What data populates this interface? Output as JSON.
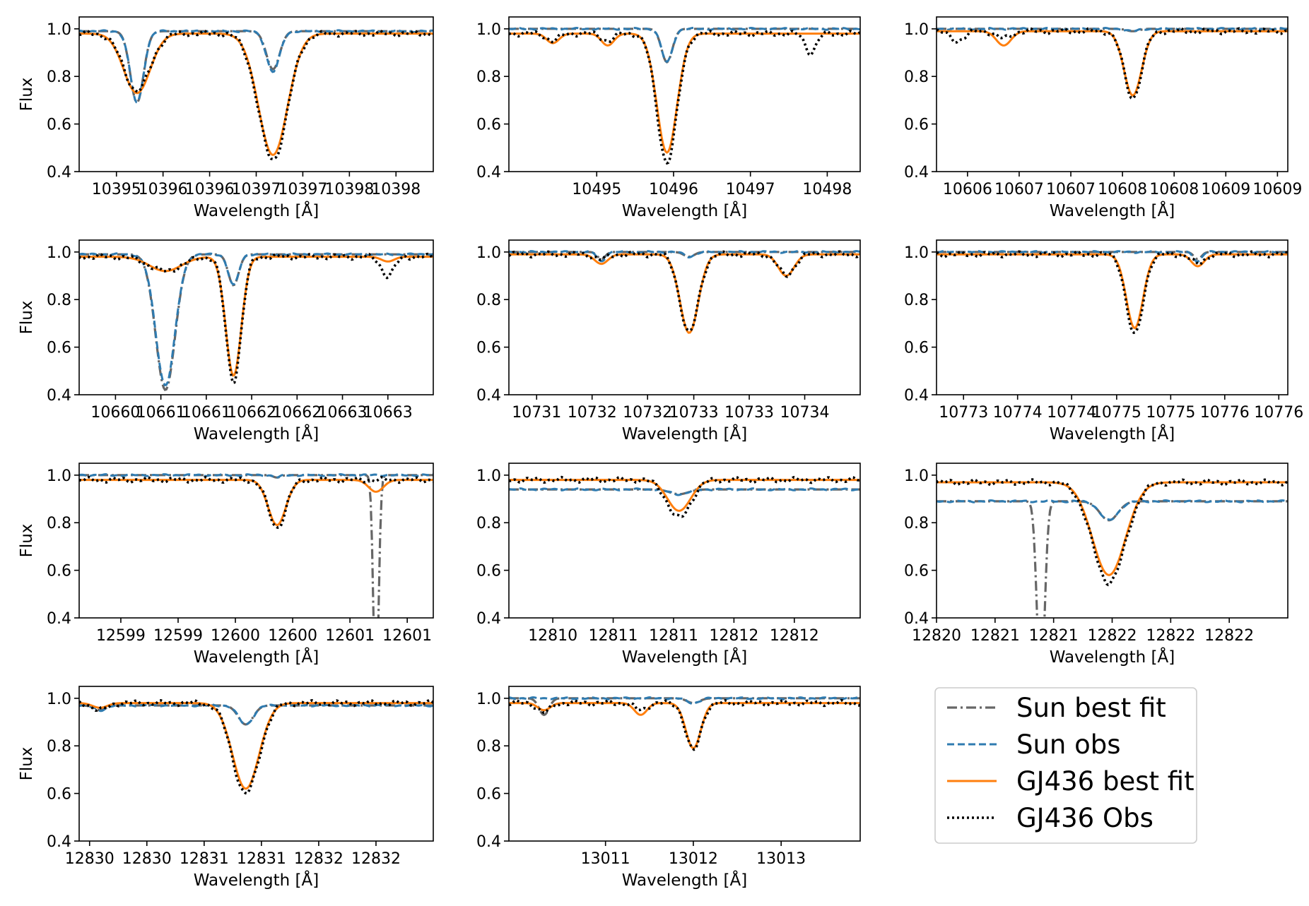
{
  "chart_data": [
    {
      "type": "line",
      "panel": 1,
      "xlabel": "Wavelength [Å]",
      "ylabel": "Flux",
      "xlim": [
        10394.4,
        10398.2
      ],
      "ylim": [
        0.4,
        1.05
      ],
      "xticks": [
        10394.8,
        10395.3,
        10395.8,
        10396.3,
        10396.8,
        10397.3,
        10397.8
      ],
      "xtick_labels": [
        "10395",
        "10396",
        "10396",
        "10397",
        "10397",
        "10398",
        "10398"
      ],
      "yticks": [
        0.4,
        0.6,
        0.8,
        1.0
      ],
      "ytick_labels": [
        "0.4",
        "0.6",
        "0.8",
        "1.0"
      ],
      "lines": [
        {
          "center": 10395.02,
          "width": 0.1,
          "sun_fit": 0.3,
          "sun_obs": 0.3,
          "gj_fit": 0.25,
          "gj_obs": 0.24,
          "gj_width": 0.2
        },
        {
          "center": 10396.48,
          "width": 0.1,
          "sun_fit": 0.16,
          "sun_obs": 0.17,
          "gj_fit": 0.51,
          "gj_obs": 0.53,
          "gj_width": 0.22
        }
      ],
      "sun_base": 0.99,
      "gj_base": 0.98,
      "gj_offset": 0.0
    },
    {
      "type": "line",
      "panel": 2,
      "xlabel": "Wavelength [Å]",
      "ylabel": "",
      "xlim": [
        10494.7,
        10497.9
      ],
      "ylim": [
        0.4,
        1.05
      ],
      "xticks": [
        10495.5,
        10496.2,
        10496.9,
        10497.6
      ],
      "xtick_labels": [
        "10495",
        "10496",
        "10497",
        "10498"
      ],
      "yticks": [
        0.4,
        0.6,
        0.8,
        1.0
      ],
      "ytick_labels": [
        "0.4",
        "0.6",
        "0.8",
        "1.0"
      ],
      "lines": [
        {
          "center": 10496.14,
          "width": 0.07,
          "sun_fit": 0.14,
          "sun_obs": 0.14,
          "gj_fit": 0.5,
          "gj_obs": 0.54,
          "gj_width": 0.13
        },
        {
          "center": 10495.1,
          "width": 0.06,
          "sun_fit": 0.0,
          "sun_obs": 0.0,
          "gj_fit": 0.04,
          "gj_obs": 0.03,
          "gj_width": 0.08
        },
        {
          "center": 10495.6,
          "width": 0.06,
          "sun_fit": 0.0,
          "sun_obs": 0.0,
          "gj_fit": 0.05,
          "gj_obs": 0.03,
          "gj_width": 0.08
        },
        {
          "center": 10497.45,
          "width": 0.06,
          "sun_fit": 0.0,
          "sun_obs": 0.0,
          "gj_fit": 0.0,
          "gj_obs": 0.08,
          "gj_width": 0.07
        }
      ],
      "sun_base": 1.0,
      "gj_base": 0.98,
      "gj_offset": 0.0
    },
    {
      "type": "line",
      "panel": 3,
      "xlabel": "Wavelength [Å]",
      "ylabel": "",
      "xlim": [
        10605.8,
        10609.2
      ],
      "ylim": [
        0.4,
        1.05
      ],
      "xticks": [
        10606.1,
        10606.6,
        10607.1,
        10607.6,
        10608.1,
        10608.6,
        10609.1
      ],
      "xtick_labels": [
        "10606",
        "10607",
        "10607",
        "10608",
        "10608",
        "10609",
        "10609"
      ],
      "yticks": [
        0.4,
        0.6,
        0.8,
        1.0
      ],
      "ytick_labels": [
        "0.4",
        "0.6",
        "0.8",
        "1.0"
      ],
      "lines": [
        {
          "center": 10607.7,
          "width": 0.08,
          "sun_fit": 0.01,
          "sun_obs": 0.01,
          "gj_fit": 0.27,
          "gj_obs": 0.28,
          "gj_width": 0.12
        },
        {
          "center": 10606.45,
          "width": 0.06,
          "sun_fit": 0.0,
          "sun_obs": 0.0,
          "gj_fit": 0.06,
          "gj_obs": 0.03,
          "gj_width": 0.1
        },
        {
          "center": 10606.0,
          "width": 0.06,
          "sun_fit": 0.0,
          "sun_obs": 0.0,
          "gj_fit": 0.0,
          "gj_obs": 0.04,
          "gj_width": 0.1
        }
      ],
      "sun_base": 1.0,
      "gj_base": 0.99,
      "gj_offset": 0.0
    },
    {
      "type": "line",
      "panel": 4,
      "xlabel": "Wavelength [Å]",
      "ylabel": "Flux",
      "xlim": [
        10659.5,
        10663.4
      ],
      "ylim": [
        0.4,
        1.05
      ],
      "xticks": [
        10659.9,
        10660.4,
        10660.9,
        10661.4,
        10661.9,
        10662.4,
        10662.9
      ],
      "xtick_labels": [
        "10660",
        "10661",
        "10661",
        "10662",
        "10662",
        "10663",
        "10663"
      ],
      "yticks": [
        0.4,
        0.6,
        0.8,
        1.0
      ],
      "ytick_labels": [
        "0.4",
        "0.6",
        "0.8",
        "1.0"
      ],
      "lines": [
        {
          "center": 10660.45,
          "width": 0.15,
          "sun_fit": 0.57,
          "sun_obs": 0.55,
          "gj_fit": 0.06,
          "gj_obs": 0.06,
          "gj_width": 0.25
        },
        {
          "center": 10661.2,
          "width": 0.08,
          "sun_fit": 0.13,
          "sun_obs": 0.13,
          "gj_fit": 0.5,
          "gj_obs": 0.52,
          "gj_width": 0.12
        },
        {
          "center": 10662.9,
          "width": 0.08,
          "sun_fit": 0.0,
          "sun_obs": 0.0,
          "gj_fit": 0.02,
          "gj_obs": 0.08,
          "gj_width": 0.1
        }
      ],
      "sun_base": 0.99,
      "gj_base": 0.98,
      "gj_offset": 0.0
    },
    {
      "type": "line",
      "panel": 5,
      "xlabel": "Wavelength [Å]",
      "ylabel": "",
      "xlim": [
        10730.6,
        10734.4
      ],
      "ylim": [
        0.4,
        1.05
      ],
      "xticks": [
        10730.9,
        10731.5,
        10732.1,
        10732.6,
        10733.2,
        10733.8
      ],
      "xtick_labels": [
        "10731",
        "10732",
        "10732",
        "10733",
        "10733",
        "10734"
      ],
      "yticks": [
        0.4,
        0.6,
        0.8,
        1.0
      ],
      "ytick_labels": [
        "0.4",
        "0.6",
        "0.8",
        "1.0"
      ],
      "lines": [
        {
          "center": 10732.55,
          "width": 0.08,
          "sun_fit": 0.02,
          "sun_obs": 0.02,
          "gj_fit": 0.33,
          "gj_obs": 0.33,
          "gj_width": 0.14
        },
        {
          "center": 10733.6,
          "width": 0.08,
          "sun_fit": 0.0,
          "sun_obs": 0.0,
          "gj_fit": 0.09,
          "gj_obs": 0.09,
          "gj_width": 0.12
        },
        {
          "center": 10731.6,
          "width": 0.06,
          "sun_fit": 0.03,
          "sun_obs": 0.04,
          "gj_fit": 0.04,
          "gj_obs": 0.02,
          "gj_width": 0.1
        }
      ],
      "sun_base": 1.0,
      "gj_base": 0.99,
      "gj_offset": 0.0
    },
    {
      "type": "line",
      "panel": 6,
      "xlabel": "Wavelength [Å]",
      "ylabel": "",
      "xlim": [
        10772.6,
        10776.5
      ],
      "ylim": [
        0.4,
        1.05
      ],
      "xticks": [
        10772.9,
        10773.5,
        10774.1,
        10774.6,
        10775.2,
        10775.8,
        10776.4
      ],
      "xtick_labels": [
        "10773",
        "10774",
        "10774",
        "10775",
        "10775",
        "10776",
        "10776"
      ],
      "yticks": [
        0.4,
        0.6,
        0.8,
        1.0
      ],
      "ytick_labels": [
        "0.4",
        "0.6",
        "0.8",
        "1.0"
      ],
      "lines": [
        {
          "center": 10774.8,
          "width": 0.08,
          "sun_fit": 0.0,
          "sun_obs": 0.0,
          "gj_fit": 0.31,
          "gj_obs": 0.34,
          "gj_width": 0.13
        },
        {
          "center": 10775.5,
          "width": 0.06,
          "sun_fit": 0.03,
          "sun_obs": 0.04,
          "gj_fit": 0.05,
          "gj_obs": 0.04,
          "gj_width": 0.1
        }
      ],
      "sun_base": 1.0,
      "gj_base": 0.99,
      "gj_offset": 0.0
    },
    {
      "type": "line",
      "panel": 7,
      "xlabel": "Wavelength [Å]",
      "ylabel": "Flux",
      "xlim": [
        12598.4,
        12601.8
      ],
      "ylim": [
        0.4,
        1.05
      ],
      "xticks": [
        12598.8,
        12599.35,
        12599.9,
        12600.45,
        12601.0,
        12601.55
      ],
      "xtick_labels": [
        "12599",
        "12599",
        "12600",
        "12600",
        "12601",
        "12601"
      ],
      "yticks": [
        0.4,
        0.6,
        0.8,
        1.0
      ],
      "ytick_labels": [
        "0.4",
        "0.6",
        "0.8",
        "1.0"
      ],
      "lines": [
        {
          "center": 12600.3,
          "width": 0.05,
          "sun_fit": 0.01,
          "sun_obs": 0.01,
          "gj_fit": 0.19,
          "gj_obs": 0.2,
          "gj_width": 0.12
        },
        {
          "center": 12601.25,
          "width": 0.035,
          "sun_fit": 0.95,
          "sun_obs": 0.0,
          "gj_fit": 0.05,
          "gj_obs": 0.0,
          "gj_width": 0.1
        }
      ],
      "sun_base": 1.0,
      "gj_base": 0.98,
      "gj_offset": 0.0
    },
    {
      "type": "line",
      "panel": 8,
      "xlabel": "Wavelength [Å]",
      "ylabel": "",
      "xlim": [
        12809.5,
        12812.7
      ],
      "ylim": [
        0.4,
        1.05
      ],
      "xticks": [
        12809.9,
        12810.45,
        12811.0,
        12811.55,
        12812.1
      ],
      "xtick_labels": [
        "12810",
        "12811",
        "12811",
        "12812",
        "12812"
      ],
      "yticks": [
        0.4,
        0.6,
        0.8,
        1.0
      ],
      "ytick_labels": [
        "0.4",
        "0.6",
        "0.8",
        "1.0"
      ],
      "lines": [
        {
          "center": 12811.05,
          "width": 0.12,
          "sun_fit": 0.02,
          "sun_obs": 0.02,
          "gj_fit": 0.13,
          "gj_obs": 0.16,
          "gj_width": 0.15
        }
      ],
      "sun_base": 0.94,
      "gj_base": 0.98,
      "gj_offset": 0.0
    },
    {
      "type": "line",
      "panel": 9,
      "xlabel": "Wavelength [Å]",
      "ylabel": "",
      "xlim": [
        12820.0,
        12823.3
      ],
      "ylim": [
        0.4,
        1.05
      ],
      "xticks": [
        12820.0,
        12820.55,
        12821.1,
        12821.65,
        12822.2,
        12822.75
      ],
      "xtick_labels": [
        "12820",
        "12821",
        "12821",
        "12822",
        "12822",
        "12822"
      ],
      "yticks": [
        0.4,
        0.6,
        0.8,
        1.0
      ],
      "ytick_labels": [
        "0.4",
        "0.6",
        "0.8",
        "1.0"
      ],
      "lines": [
        {
          "center": 12821.62,
          "width": 0.12,
          "sun_fit": 0.08,
          "sun_obs": 0.08,
          "gj_fit": 0.39,
          "gj_obs": 0.42,
          "gj_width": 0.22
        },
        {
          "center": 12820.98,
          "width": 0.05,
          "sun_fit": 0.8,
          "sun_obs": 0.0,
          "gj_fit": 0.0,
          "gj_obs": 0.0,
          "gj_width": 0.1
        }
      ],
      "sun_base": 0.89,
      "gj_base": 0.97,
      "gj_offset": 0.0
    },
    {
      "type": "line",
      "panel": 10,
      "xlabel": "Wavelength [Å]",
      "ylabel": "Flux",
      "xlim": [
        12829.4,
        12832.8
      ],
      "ylim": [
        0.4,
        1.05
      ],
      "xticks": [
        12829.5,
        12830.05,
        12830.6,
        12831.15,
        12831.7,
        12832.25
      ],
      "xtick_labels": [
        "12830",
        "12830",
        "12831",
        "12831",
        "12832",
        "12832"
      ],
      "yticks": [
        0.4,
        0.6,
        0.8,
        1.0
      ],
      "ytick_labels": [
        "0.4",
        "0.6",
        "0.8",
        "1.0"
      ],
      "lines": [
        {
          "center": 12831.0,
          "width": 0.1,
          "sun_fit": 0.08,
          "sun_obs": 0.08,
          "gj_fit": 0.36,
          "gj_obs": 0.38,
          "gj_width": 0.18
        },
        {
          "center": 12829.6,
          "width": 0.08,
          "sun_fit": 0.02,
          "sun_obs": 0.02,
          "gj_fit": 0.02,
          "gj_obs": 0.03,
          "gj_width": 0.1
        }
      ],
      "sun_base": 0.97,
      "gj_base": 0.98,
      "gj_offset": 0.0
    },
    {
      "type": "line",
      "panel": 11,
      "xlabel": "Wavelength [Å]",
      "ylabel": "",
      "xlim": [
        13009.9,
        13013.9
      ],
      "ylim": [
        0.4,
        1.05
      ],
      "xticks": [
        13011.0,
        13012.0,
        13013.0
      ],
      "xtick_labels": [
        "13011",
        "13012",
        "13013"
      ],
      "yticks": [
        0.4,
        0.6,
        0.8,
        1.0
      ],
      "ytick_labels": [
        "0.4",
        "0.6",
        "0.8",
        "1.0"
      ],
      "lines": [
        {
          "center": 13012.0,
          "width": 0.1,
          "sun_fit": 0.02,
          "sun_obs": 0.02,
          "gj_fit": 0.19,
          "gj_obs": 0.2,
          "gj_width": 0.12
        },
        {
          "center": 13010.3,
          "width": 0.08,
          "sun_fit": 0.07,
          "sun_obs": 0.0,
          "gj_fit": 0.03,
          "gj_obs": 0.04,
          "gj_width": 0.1
        },
        {
          "center": 13011.4,
          "width": 0.08,
          "sun_fit": 0.0,
          "sun_obs": 0.0,
          "gj_fit": 0.05,
          "gj_obs": 0.03,
          "gj_width": 0.1
        }
      ],
      "sun_base": 1.0,
      "gj_base": 0.98,
      "gj_offset": 0.0
    }
  ],
  "legend": {
    "placement": "bottom-right",
    "entries": [
      {
        "label": "Sun best fit",
        "style": "dashdot",
        "color": "#666666"
      },
      {
        "label": "Sun obs",
        "style": "dashed",
        "color": "#2f7bb0"
      },
      {
        "label": "GJ436 best fit",
        "style": "solid",
        "color": "#ff7f0e"
      },
      {
        "label": "GJ436 Obs",
        "style": "dotted",
        "color": "#000000"
      }
    ]
  },
  "colors": {
    "sun_best_fit": "#666666",
    "sun_obs": "#2f7bb0",
    "gj436_best_fit": "#ff7f0e",
    "gj436_obs": "#000000"
  }
}
